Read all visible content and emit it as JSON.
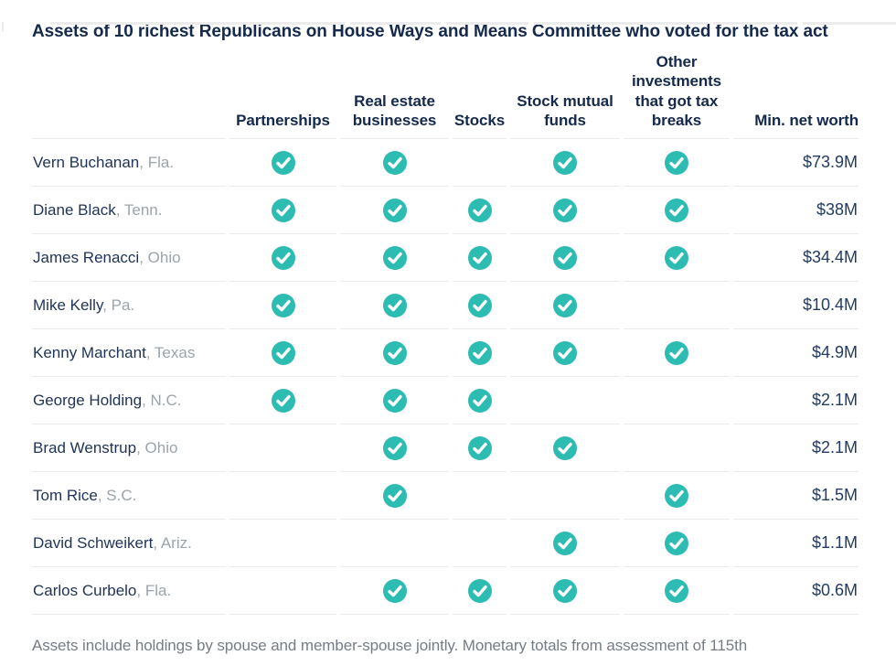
{
  "chart_data": {
    "type": "table",
    "title": "Assets of 10 richest Republicans on House Ways and Means Committee who voted for the tax act",
    "columns": [
      "Partnerships",
      "Real estate businesses",
      "Stocks",
      "Stock mutual funds",
      "Other investments that got tax breaks",
      "Min. net worth"
    ],
    "rows": [
      {
        "name": "Vern Buchanan",
        "state": "Fla.",
        "checks": [
          true,
          true,
          false,
          true,
          true
        ],
        "min_net_worth": "$73.9M"
      },
      {
        "name": "Diane Black",
        "state": "Tenn.",
        "checks": [
          true,
          true,
          true,
          true,
          true
        ],
        "min_net_worth": "$38M"
      },
      {
        "name": "James Renacci",
        "state": "Ohio",
        "checks": [
          true,
          true,
          true,
          true,
          true
        ],
        "min_net_worth": "$34.4M"
      },
      {
        "name": "Mike Kelly",
        "state": "Pa.",
        "checks": [
          true,
          true,
          true,
          true,
          false
        ],
        "min_net_worth": "$10.4M"
      },
      {
        "name": "Kenny Marchant",
        "state": "Texas",
        "checks": [
          true,
          true,
          true,
          true,
          true
        ],
        "min_net_worth": "$4.9M"
      },
      {
        "name": "George Holding",
        "state": "N.C.",
        "checks": [
          true,
          true,
          true,
          false,
          false
        ],
        "min_net_worth": "$2.1M"
      },
      {
        "name": "Brad Wenstrup",
        "state": "Ohio",
        "checks": [
          false,
          true,
          true,
          true,
          false
        ],
        "min_net_worth": "$2.1M"
      },
      {
        "name": "Tom Rice",
        "state": "S.C.",
        "checks": [
          false,
          true,
          false,
          false,
          true
        ],
        "min_net_worth": "$1.5M"
      },
      {
        "name": "David Schweikert",
        "state": "Ariz.",
        "checks": [
          false,
          false,
          false,
          true,
          true
        ],
        "min_net_worth": "$1.1M"
      },
      {
        "name": "Carlos Curbelo",
        "state": "Fla.",
        "checks": [
          false,
          true,
          true,
          true,
          true
        ],
        "min_net_worth": "$0.6M"
      }
    ],
    "footnote_visible": "Assets include holdings by spouse and member-spouse jointly. Monetary totals from assessment of 115th",
    "layout_hints": {
      "check_mark_meaning": "member holds this asset type",
      "grid": "horizontal row rules only"
    }
  },
  "colors": {
    "accent_teal": "#2dbcb2",
    "check_mark_white": "#ffffff",
    "navy_heading": "#14294c",
    "navy_name": "#1e3357",
    "navy_value": "#223c63",
    "state_gray": "#9ba4ac",
    "footnote_gray": "#747d86",
    "border_gray": "#e9ebec"
  }
}
